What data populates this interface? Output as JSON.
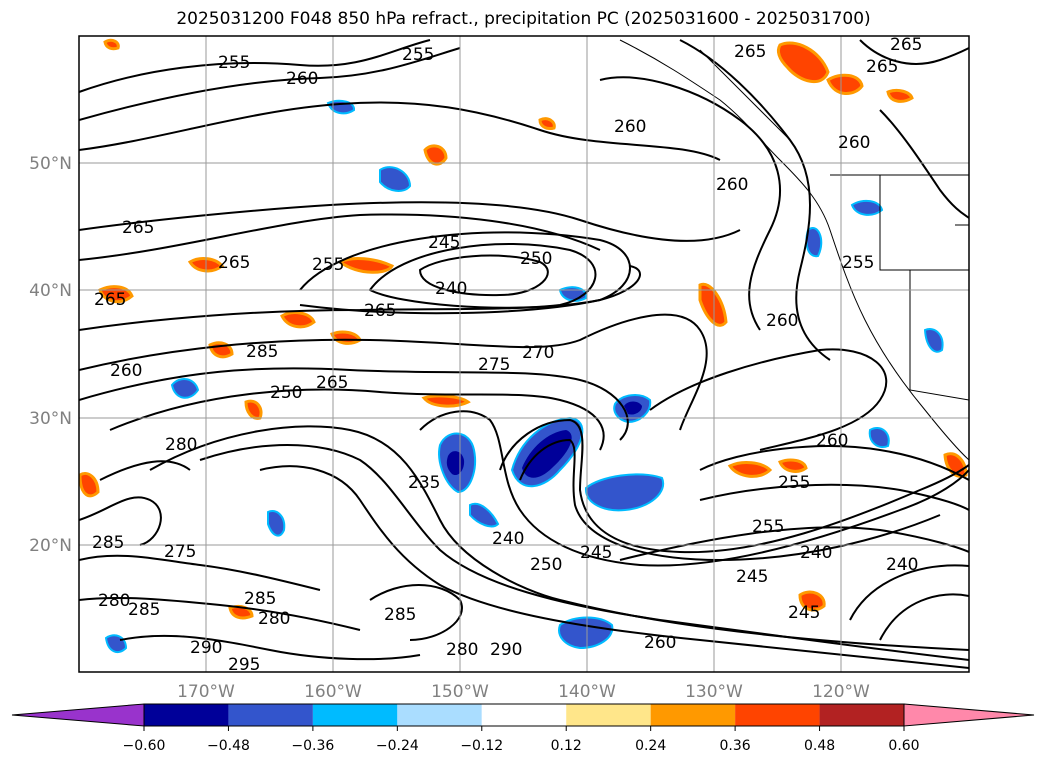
{
  "title": "2025031200 F048 850 hPa refract., precipitation PC (2025031600 - 2025031700)",
  "latitude_labels": [
    "50°N",
    "40°N",
    "30°N",
    "20°N"
  ],
  "longitude_labels": [
    "170°W",
    "160°W",
    "150°W",
    "140°W",
    "130°W",
    "120°W"
  ],
  "colorbar": {
    "ticks": [
      "−0.60",
      "−0.48",
      "−0.36",
      "−0.24",
      "−0.12",
      "0.12",
      "0.24",
      "0.36",
      "0.48",
      "0.60"
    ],
    "colors": [
      "#9933cc",
      "#000099",
      "#3355cc",
      "#00bbff",
      "#aaddff",
      "#ffffff",
      "#ffe68a",
      "#ff9900",
      "#ff4400",
      "#b22222",
      "#ff88aa"
    ]
  },
  "contour_labels": [
    "255",
    "260",
    "265",
    "255",
    "265",
    "260",
    "265",
    "265",
    "255",
    "245",
    "250",
    "240",
    "265",
    "260",
    "260",
    "265",
    "285",
    "275",
    "270",
    "250",
    "265",
    "280",
    "235",
    "240",
    "250",
    "245",
    "245",
    "240",
    "240",
    "260",
    "255",
    "255",
    "260",
    "255",
    "285",
    "275",
    "285",
    "280",
    "280",
    "285",
    "290",
    "280",
    "295",
    "260",
    "285",
    "290",
    "260",
    "265",
    "245"
  ],
  "shading_colors": {
    "dark_blue": "#000099",
    "blue": "#3355cc",
    "cyan": "#00bbff",
    "yellow": "#ffe68a",
    "orange": "#ff9900",
    "red_orange": "#ff4400",
    "dark_red": "#b22222"
  }
}
